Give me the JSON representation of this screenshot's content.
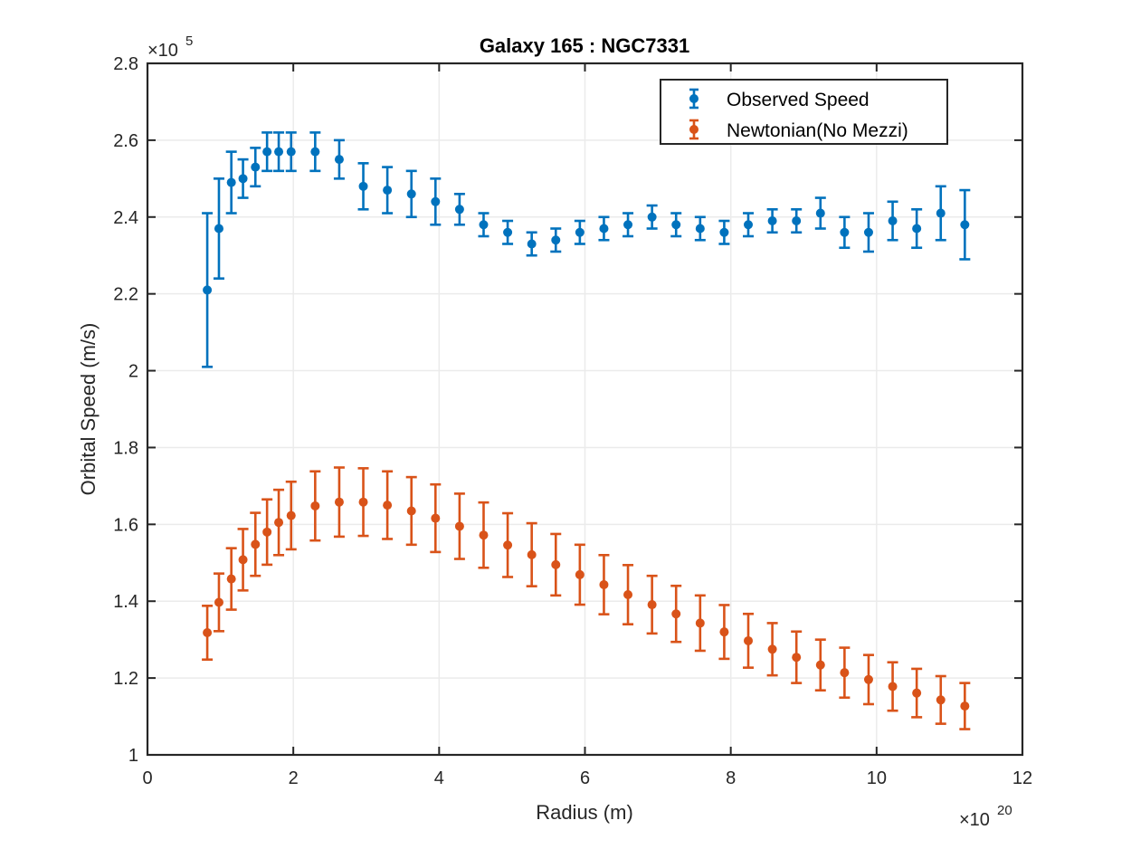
{
  "chart_data": {
    "type": "scatter",
    "title": "Galaxy 165 : NGC7331",
    "xlabel": "Radius (m)",
    "ylabel": "Orbital Speed (m/s)",
    "x_multiplier": {
      "prefix": "×10",
      "exponent": "20"
    },
    "y_multiplier": {
      "prefix": "×10",
      "exponent": "5"
    },
    "xlim": [
      0,
      12
    ],
    "ylim": [
      1,
      2.8
    ],
    "xticks": [
      "0",
      "2",
      "4",
      "6",
      "8",
      "10",
      "12"
    ],
    "yticks": [
      "1",
      "1.2",
      "1.4",
      "1.6",
      "1.8",
      "2",
      "2.2",
      "2.4",
      "2.6",
      "2.8"
    ],
    "grid": true,
    "legend_position": "top-right",
    "series": [
      {
        "name": "Observed Speed",
        "color": "#0072BD",
        "x": [
          0.82,
          0.98,
          1.15,
          1.31,
          1.48,
          1.64,
          1.8,
          1.97,
          2.3,
          2.63,
          2.96,
          3.29,
          3.62,
          3.95,
          4.28,
          4.61,
          4.94,
          5.27,
          5.6,
          5.93,
          6.26,
          6.59,
          6.92,
          7.25,
          7.58,
          7.91,
          8.24,
          8.57,
          8.9,
          9.23,
          9.56,
          9.89,
          10.22,
          10.55,
          10.88,
          11.21
        ],
        "y": [
          2.21,
          2.37,
          2.49,
          2.5,
          2.53,
          2.57,
          2.57,
          2.57,
          2.57,
          2.55,
          2.48,
          2.47,
          2.46,
          2.44,
          2.42,
          2.38,
          2.36,
          2.33,
          2.34,
          2.36,
          2.37,
          2.38,
          2.4,
          2.38,
          2.37,
          2.36,
          2.38,
          2.39,
          2.39,
          2.41,
          2.36,
          2.36,
          2.39,
          2.37,
          2.41,
          2.38
        ],
        "err": [
          0.2,
          0.13,
          0.08,
          0.05,
          0.05,
          0.05,
          0.05,
          0.05,
          0.05,
          0.05,
          0.06,
          0.06,
          0.06,
          0.06,
          0.04,
          0.03,
          0.03,
          0.03,
          0.03,
          0.03,
          0.03,
          0.03,
          0.03,
          0.03,
          0.03,
          0.03,
          0.03,
          0.03,
          0.03,
          0.04,
          0.04,
          0.05,
          0.05,
          0.05,
          0.07,
          0.09
        ]
      },
      {
        "name": "Newtonian(No Mezzi)",
        "color": "#D95319",
        "x": [
          0.82,
          0.98,
          1.15,
          1.31,
          1.48,
          1.64,
          1.8,
          1.97,
          2.3,
          2.63,
          2.96,
          3.29,
          3.62,
          3.95,
          4.28,
          4.61,
          4.94,
          5.27,
          5.6,
          5.93,
          6.26,
          6.59,
          6.92,
          7.25,
          7.58,
          7.91,
          8.24,
          8.57,
          8.9,
          9.23,
          9.56,
          9.89,
          10.22,
          10.55,
          10.88,
          11.21
        ],
        "y": [
          1.318,
          1.397,
          1.458,
          1.508,
          1.548,
          1.58,
          1.605,
          1.623,
          1.648,
          1.658,
          1.658,
          1.65,
          1.635,
          1.616,
          1.595,
          1.572,
          1.546,
          1.521,
          1.495,
          1.469,
          1.443,
          1.417,
          1.391,
          1.367,
          1.343,
          1.32,
          1.297,
          1.275,
          1.254,
          1.234,
          1.214,
          1.196,
          1.178,
          1.161,
          1.143,
          1.127
        ],
        "err": [
          0.07,
          0.075,
          0.08,
          0.08,
          0.082,
          0.085,
          0.085,
          0.088,
          0.09,
          0.09,
          0.088,
          0.088,
          0.088,
          0.088,
          0.085,
          0.085,
          0.083,
          0.082,
          0.08,
          0.078,
          0.077,
          0.077,
          0.075,
          0.073,
          0.072,
          0.07,
          0.07,
          0.068,
          0.067,
          0.066,
          0.065,
          0.064,
          0.063,
          0.063,
          0.062,
          0.06
        ]
      }
    ]
  }
}
